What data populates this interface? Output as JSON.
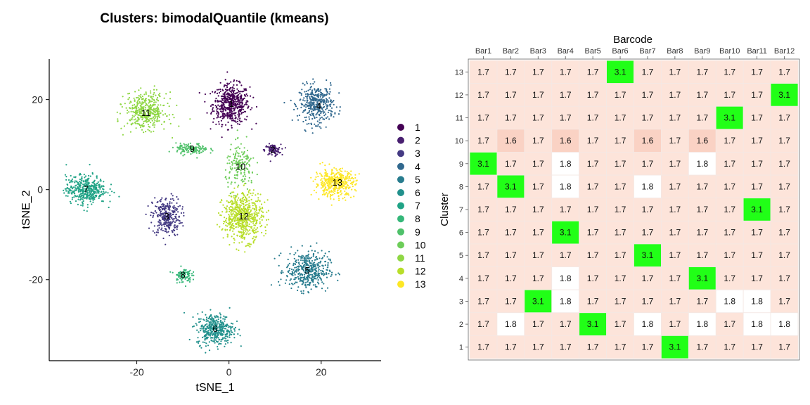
{
  "chart_data": [
    {
      "type": "scatter",
      "title": "Clusters: bimodalQuantile (kmeans)",
      "xlabel": "tSNE_1",
      "ylabel": "tSNE_2",
      "xlim": [
        -39,
        33
      ],
      "ylim": [
        -38,
        29
      ],
      "xticks": [
        -20,
        0,
        20
      ],
      "yticks": [
        -20,
        0,
        20
      ],
      "legend_position": "right",
      "legend_entries": [
        "1",
        "2",
        "3",
        "4",
        "5",
        "6",
        "7",
        "8",
        "9",
        "10",
        "11",
        "12",
        "13"
      ],
      "clusters": [
        {
          "label": "1",
          "color": "#440154",
          "cx": 0.5,
          "cy": 19,
          "sx": 3.2,
          "sy": 3.5,
          "n": 520,
          "label_x": 0.5,
          "label_y": 19
        },
        {
          "label": "2",
          "color": "#481F70",
          "cx": 9.5,
          "cy": 8.8,
          "sx": 1.4,
          "sy": 1.0,
          "n": 90,
          "label_x": 9.5,
          "label_y": 8.8
        },
        {
          "label": "3",
          "color": "#443A83",
          "cx": -13.5,
          "cy": -6,
          "sx": 2.5,
          "sy": 3.5,
          "n": 300,
          "label_x": -13.5,
          "label_y": -6
        },
        {
          "label": "4",
          "color": "#31688E",
          "cx": 19,
          "cy": 19,
          "sx": 3.0,
          "sy": 3.3,
          "n": 380,
          "label_x": 19.5,
          "label_y": 18.5
        },
        {
          "label": "5",
          "color": "#287C8E",
          "cx": 17,
          "cy": -18,
          "sx": 3.8,
          "sy": 3.4,
          "n": 420,
          "label_x": 17,
          "label_y": -18
        },
        {
          "label": "6",
          "color": "#21908C",
          "cx": -3,
          "cy": -31,
          "sx": 3.2,
          "sy": 2.8,
          "n": 400,
          "label_x": -3,
          "label_y": -31
        },
        {
          "label": "7",
          "color": "#20A386",
          "cx": -31,
          "cy": 0,
          "sx": 3.5,
          "sy": 2.5,
          "n": 420,
          "label_x": -31,
          "label_y": 0
        },
        {
          "label": "8",
          "color": "#35B779",
          "cx": -10,
          "cy": -19,
          "sx": 1.5,
          "sy": 1.3,
          "n": 90,
          "label_x": -10,
          "label_y": -19
        },
        {
          "label": "9",
          "color": "#4FC16A",
          "cx": -8,
          "cy": 9,
          "sx": 2.8,
          "sy": 1.0,
          "n": 140,
          "label_x": -8,
          "label_y": 9
        },
        {
          "label": "10",
          "color": "#6DCD59",
          "cx": 2.5,
          "cy": 5,
          "sx": 2.6,
          "sy": 4.0,
          "n": 170,
          "label_x": 2.5,
          "label_y": 5
        },
        {
          "label": "11",
          "color": "#8FD744",
          "cx": -18,
          "cy": 17.5,
          "sx": 3.6,
          "sy": 3.2,
          "n": 420,
          "label_x": -18,
          "label_y": 17
        },
        {
          "label": "12",
          "color": "#B8DE29",
          "cx": 3,
          "cy": -6,
          "sx": 3.5,
          "sy": 4.3,
          "n": 600,
          "label_x": 3.2,
          "label_y": -6
        },
        {
          "label": "13",
          "color": "#FDE725",
          "cx": 23,
          "cy": 1.5,
          "sx": 3.5,
          "sy": 2.4,
          "n": 420,
          "label_x": 23.5,
          "label_y": 1.5
        }
      ]
    },
    {
      "type": "heatmap",
      "xlabel": "Barcode",
      "ylabel": "Cluster",
      "x_categories": [
        "Bar1",
        "Bar2",
        "Bar3",
        "Bar4",
        "Bar5",
        "Bar6",
        "Bar7",
        "Bar8",
        "Bar9",
        "Bar10",
        "Bar11",
        "Bar12"
      ],
      "y_categories": [
        "13",
        "12",
        "11",
        "10",
        "9",
        "8",
        "7",
        "6",
        "5",
        "4",
        "3",
        "2",
        "1"
      ],
      "values": [
        [
          "1.7",
          "1.7",
          "1.7",
          "1.7",
          "1.7",
          "3.1",
          "1.7",
          "1.7",
          "1.7",
          "1.7",
          "1.7",
          "1.7"
        ],
        [
          "1.7",
          "1.7",
          "1.7",
          "1.7",
          "1.7",
          "1.7",
          "1.7",
          "1.7",
          "1.7",
          "1.7",
          "1.7",
          "3.1"
        ],
        [
          "1.7",
          "1.7",
          "1.7",
          "1.7",
          "1.7",
          "1.7",
          "1.7",
          "1.7",
          "1.7",
          "3.1",
          "1.7",
          "1.7"
        ],
        [
          "1.7",
          "1.6",
          "1.7",
          "1.6",
          "1.7",
          "1.7",
          "1.6",
          "1.7",
          "1.6",
          "1.7",
          "1.7",
          "1.7"
        ],
        [
          "3.1",
          "1.7",
          "1.7",
          "1.8",
          "1.7",
          "1.7",
          "1.7",
          "1.7",
          "1.8",
          "1.7",
          "1.7",
          "1.7"
        ],
        [
          "1.7",
          "3.1",
          "1.7",
          "1.8",
          "1.7",
          "1.7",
          "1.8",
          "1.7",
          "1.7",
          "1.7",
          "1.7",
          "1.7"
        ],
        [
          "1.7",
          "1.7",
          "1.7",
          "1.7",
          "1.7",
          "1.7",
          "1.7",
          "1.7",
          "1.7",
          "1.7",
          "3.1",
          "1.7"
        ],
        [
          "1.7",
          "1.7",
          "1.7",
          "3.1",
          "1.7",
          "1.7",
          "1.7",
          "1.7",
          "1.7",
          "1.7",
          "1.7",
          "1.7"
        ],
        [
          "1.7",
          "1.7",
          "1.7",
          "1.7",
          "1.7",
          "1.7",
          "3.1",
          "1.7",
          "1.7",
          "1.7",
          "1.7",
          "1.7"
        ],
        [
          "1.7",
          "1.7",
          "1.7",
          "1.8",
          "1.7",
          "1.7",
          "1.7",
          "1.7",
          "3.1",
          "1.7",
          "1.7",
          "1.7"
        ],
        [
          "1.7",
          "1.7",
          "3.1",
          "1.8",
          "1.7",
          "1.7",
          "1.7",
          "1.7",
          "1.7",
          "1.8",
          "1.8",
          "1.7"
        ],
        [
          "1.7",
          "1.8",
          "1.7",
          "1.7",
          "3.1",
          "1.7",
          "1.8",
          "1.7",
          "1.8",
          "1.7",
          "1.8",
          "1.8"
        ],
        [
          "1.7",
          "1.7",
          "1.7",
          "1.7",
          "1.7",
          "1.7",
          "1.7",
          "3.1",
          "1.7",
          "1.7",
          "1.7",
          "1.7"
        ]
      ],
      "colors": {
        "high": "#21FF17",
        "low": "#FFFFFF",
        "mid": "#FDE4DA",
        "min": "#FAD2C4",
        "border": "#F4E8E4"
      }
    }
  ]
}
